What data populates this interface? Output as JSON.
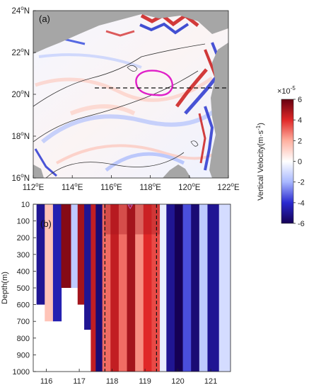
{
  "chart_data": [
    {
      "type": "heatmap",
      "panel_label": "(a)",
      "x_ticks": [
        "112",
        "114",
        "116",
        "118",
        "120",
        "122"
      ],
      "x_unit": "E",
      "y_ticks": [
        "16",
        "18",
        "20",
        "22",
        "24"
      ],
      "y_unit": "N",
      "xlim": [
        112,
        122
      ],
      "ylim": [
        16,
        24
      ],
      "section_line": {
        "lon": [
          115.0,
          122.0
        ],
        "lat": 20.4,
        "style": "dashed"
      },
      "outlined_region_color": "#e020c8",
      "land_color": "#a6a6a6"
    },
    {
      "type": "heatmap",
      "panel_label": "(b)",
      "ylabel": "Depth(m)",
      "x_ticks": [
        "116",
        "117",
        "118",
        "119",
        "120",
        "121"
      ],
      "y_ticks": [
        "10",
        "100",
        "200",
        "300",
        "400",
        "500",
        "600",
        "700",
        "800",
        "900",
        "1000"
      ],
      "xlim": [
        115.6,
        121.6
      ],
      "ylim": [
        1000,
        10
      ],
      "vertical_dashed_lines": [
        117.78,
        119.35
      ],
      "marker": {
        "x": 118.55,
        "y": 10,
        "shape": "triangle-down"
      },
      "columns": [
        {
          "x": 115.7,
          "w": 0.25,
          "v": -5,
          "max_depth": 600
        },
        {
          "x": 115.95,
          "w": 0.25,
          "v": 1.5,
          "max_depth": 700
        },
        {
          "x": 116.2,
          "w": 0.25,
          "v": -4.5,
          "max_depth": 700
        },
        {
          "x": 116.45,
          "w": 0.3,
          "v": 5.5,
          "max_depth": 500
        },
        {
          "x": 116.75,
          "w": 0.2,
          "v": -1.5,
          "max_depth": 500
        },
        {
          "x": 116.95,
          "w": 0.2,
          "v": 5,
          "max_depth": 600
        },
        {
          "x": 117.15,
          "w": 0.2,
          "v": -5,
          "max_depth": 750
        },
        {
          "x": 117.35,
          "w": 0.15,
          "v": 4.5,
          "max_depth": 1000
        },
        {
          "x": 117.5,
          "w": 0.2,
          "v": -5.5,
          "max_depth": 1000
        },
        {
          "x": 117.7,
          "w": 0.25,
          "v": 3,
          "max_depth": 1000
        },
        {
          "x": 117.95,
          "w": 0.25,
          "v": 4.5,
          "max_depth": 1000
        },
        {
          "x": 118.2,
          "w": 0.25,
          "v": 3,
          "max_depth": 1000
        },
        {
          "x": 118.45,
          "w": 0.25,
          "v": 5,
          "max_depth": 1000
        },
        {
          "x": 118.7,
          "w": 0.25,
          "v": 2.5,
          "max_depth": 1000
        },
        {
          "x": 118.95,
          "w": 0.25,
          "v": 4,
          "max_depth": 1000
        },
        {
          "x": 119.2,
          "w": 0.25,
          "v": 3.5,
          "max_depth": 1000
        },
        {
          "x": 119.45,
          "w": 0.2,
          "v": -0.5,
          "max_depth": 1000
        },
        {
          "x": 119.65,
          "w": 0.25,
          "v": -5,
          "max_depth": 1000
        },
        {
          "x": 119.9,
          "w": 0.25,
          "v": -6,
          "max_depth": 1000
        },
        {
          "x": 120.15,
          "w": 0.25,
          "v": -3.5,
          "max_depth": 1000
        },
        {
          "x": 120.4,
          "w": 0.25,
          "v": -5.5,
          "max_depth": 1000
        },
        {
          "x": 120.65,
          "w": 0.25,
          "v": -1.5,
          "max_depth": 1000
        },
        {
          "x": 120.9,
          "w": 0.35,
          "v": -5,
          "max_depth": 1000
        },
        {
          "x": 121.25,
          "w": 0.35,
          "v": -1,
          "max_depth": 1000
        }
      ],
      "surface_band": {
        "depth": [
          10,
          180
        ],
        "v": 5
      }
    }
  ],
  "colorbar": {
    "label": "Vertical Velocity(m·s",
    "label_superscript": "-1",
    "label_close": ")",
    "exponent_base": "×10",
    "exponent_power": "-5",
    "ticks": [
      "6",
      "4",
      "2",
      "0",
      "-2",
      "-4",
      "-6"
    ],
    "range": [
      -6,
      6
    ],
    "colors": [
      "#150055",
      "#2a2ad0",
      "#a8b8ff",
      "#ffffff",
      "#ffb0a0",
      "#e02828",
      "#660010"
    ]
  }
}
